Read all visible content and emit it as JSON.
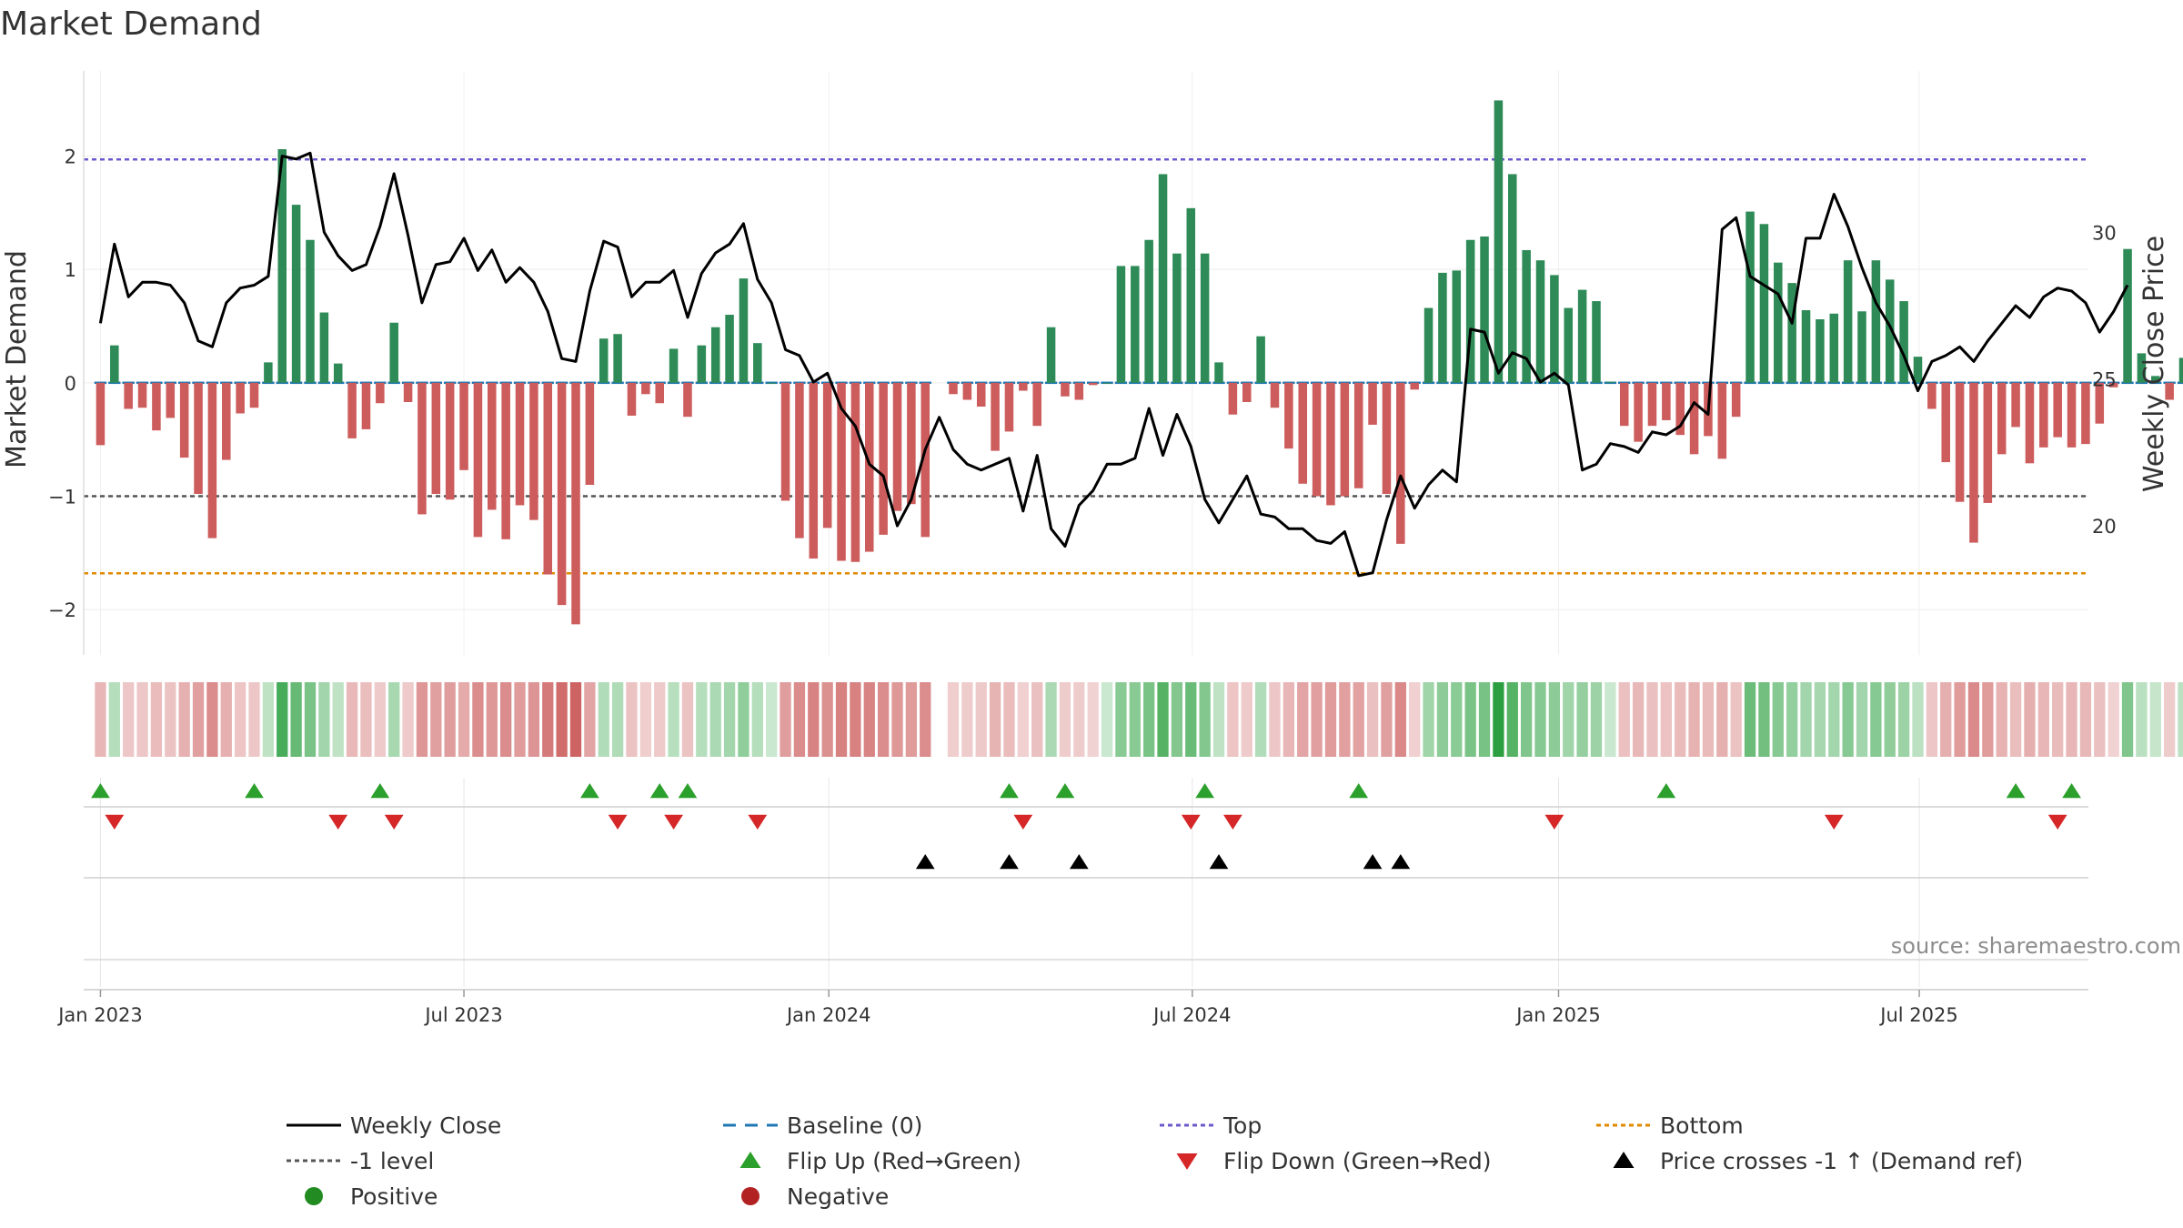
{
  "chart_data": {
    "type": "bar+line",
    "title": "Market Demand",
    "ylabel_left": "Market Demand",
    "ylabel_right": "Weekly Close Price",
    "ylim_left": [
      -2.4,
      2.75
    ],
    "ylim_right": [
      15.6,
      35.5
    ],
    "yticks_left": [
      2,
      1,
      0,
      -1,
      -2
    ],
    "ytick_labels_left": [
      "2",
      "1",
      "0",
      "−1",
      "−2"
    ],
    "yticks_right": [
      30,
      25,
      20
    ],
    "ytick_labels_right": [
      "30",
      "25",
      "20"
    ],
    "x_ticks": [
      {
        "week": 0,
        "label": "Jan 2023"
      },
      {
        "week": 26,
        "label": "Jul 2023"
      },
      {
        "week": 52.1,
        "label": "Jan 2024"
      },
      {
        "week": 78.1,
        "label": "Jul 2024"
      },
      {
        "week": 104.3,
        "label": "Jan 2025"
      },
      {
        "week": 130.1,
        "label": "Jul 2025"
      }
    ],
    "x_range_weeks": [
      -1.2,
      142.2
    ],
    "reference_lines": {
      "top": 1.97,
      "bottom": -1.68,
      "minus_one": -1.0,
      "baseline": 0
    },
    "demand": [
      -0.55,
      0.33,
      -0.23,
      -0.22,
      -0.42,
      -0.31,
      -0.66,
      -0.98,
      -1.37,
      -0.68,
      -0.27,
      -0.22,
      0.18,
      2.06,
      1.57,
      1.26,
      0.62,
      0.17,
      -0.49,
      -0.41,
      -0.18,
      0.53,
      -0.17,
      -1.16,
      -0.98,
      -1.03,
      -0.77,
      -1.36,
      -1.12,
      -1.38,
      -1.08,
      -1.21,
      -1.69,
      -1.96,
      -2.13,
      -0.9,
      0.39,
      0.43,
      -0.29,
      -0.1,
      -0.18,
      0.3,
      -0.3,
      0.33,
      0.49,
      0.6,
      0.92,
      0.35,
      0,
      -1.04,
      -1.37,
      -1.55,
      -1.28,
      -1.57,
      -1.58,
      -1.49,
      -1.34,
      -1.13,
      -1.07,
      -1.36,
      null,
      -0.1,
      -0.15,
      -0.21,
      -0.6,
      -0.43,
      -0.07,
      -0.38,
      0.49,
      -0.12,
      -0.15,
      -0.02,
      0,
      1.03,
      1.03,
      1.26,
      1.84,
      1.14,
      1.54,
      1.14,
      0.18,
      -0.28,
      -0.17,
      0.41,
      -0.22,
      -0.58,
      -0.89,
      -1.0,
      -1.08,
      -1.0,
      -0.93,
      -0.37,
      -0.98,
      -1.42,
      -0.06,
      0.66,
      0.97,
      0.99,
      1.26,
      1.29,
      2.49,
      1.84,
      1.17,
      1.08,
      0.95,
      0.66,
      0.82,
      0.72,
      0.01,
      -0.38,
      -0.52,
      -0.38,
      -0.33,
      -0.46,
      -0.63,
      -0.47,
      -0.67,
      -0.3,
      1.51,
      1.4,
      1.06,
      0.88,
      0.64,
      0.56,
      0.61,
      1.08,
      0.63,
      1.08,
      0.91,
      0.72,
      0.23,
      -0.23,
      -0.7,
      -1.05,
      -1.41,
      -1.06,
      -0.63,
      -0.39,
      -0.71,
      -0.57,
      -0.48,
      -0.57,
      -0.54,
      -0.36,
      -0.04,
      1.18,
      0.26,
      0.06,
      -0.15,
      0.22
    ],
    "weekly_close": [
      26.9,
      29.6,
      27.8,
      28.3,
      28.3,
      28.2,
      27.6,
      26.3,
      26.1,
      27.6,
      28.1,
      28.2,
      28.5,
      32.6,
      32.5,
      32.7,
      30.0,
      29.2,
      28.7,
      28.9,
      30.2,
      32.0,
      29.9,
      27.6,
      28.9,
      29.0,
      29.8,
      28.7,
      29.4,
      28.3,
      28.8,
      28.3,
      27.3,
      25.7,
      25.6,
      28.0,
      29.7,
      29.5,
      27.8,
      28.3,
      28.3,
      28.7,
      27.1,
      28.6,
      29.3,
      29.6,
      30.3,
      28.4,
      27.6,
      26.0,
      25.8,
      24.9,
      25.2,
      24.0,
      23.4,
      22.1,
      21.7,
      20.0,
      20.9,
      22.6,
      23.7,
      22.6,
      22.1,
      21.9,
      22.1,
      22.3,
      20.5,
      22.4,
      19.9,
      19.3,
      20.7,
      21.2,
      22.1,
      22.1,
      22.3,
      24.0,
      22.4,
      23.8,
      22.7,
      20.9,
      20.1,
      20.9,
      21.7,
      20.4,
      20.3,
      19.9,
      19.9,
      19.5,
      19.4,
      19.8,
      18.3,
      18.4,
      20.2,
      21.7,
      20.6,
      21.4,
      21.9,
      21.5,
      26.7,
      26.6,
      25.2,
      25.9,
      25.7,
      24.9,
      25.2,
      24.8,
      21.9,
      22.1,
      22.8,
      22.7,
      22.5,
      23.2,
      23.1,
      23.4,
      24.2,
      23.8,
      30.1,
      30.5,
      28.5,
      28.2,
      27.9,
      26.9,
      29.8,
      29.8,
      31.3,
      30.2,
      28.8,
      27.6,
      26.8,
      25.8,
      24.6,
      25.6,
      25.8,
      26.1,
      25.6,
      26.3,
      26.9,
      27.5,
      27.1,
      27.8,
      28.1,
      28.0,
      27.6,
      26.6,
      27.3,
      28.2
    ],
    "flip_up_weeks": [
      0,
      11,
      20,
      35,
      40,
      42,
      65,
      69,
      79,
      90,
      112,
      137,
      141
    ],
    "flip_down_weeks": [
      1,
      17,
      21,
      37,
      41,
      47,
      66,
      78,
      81,
      104,
      124,
      140
    ],
    "price_cross_weeks": [
      59,
      65,
      70,
      80,
      91,
      93
    ],
    "legend": [
      {
        "label": "Weekly Close",
        "symbol": "line",
        "color": "#000000"
      },
      {
        "label": "Baseline (0)",
        "symbol": "dash",
        "color": "#1f77b4"
      },
      {
        "label": "Top",
        "symbol": "dot",
        "color": "#6a5acd"
      },
      {
        "label": "Bottom",
        "symbol": "dot",
        "color": "#e08a00"
      },
      {
        "label": "-1 level",
        "symbol": "dot",
        "color": "#555555"
      },
      {
        "label": "Flip Up (Red→Green)",
        "symbol": "tri-up",
        "color": "#2ca02c"
      },
      {
        "label": "Flip Down (Green→Red)",
        "symbol": "tri-down",
        "color": "#d62728"
      },
      {
        "label": "Price crosses -1 ↑ (Demand ref)",
        "symbol": "tri-up",
        "color": "#000000"
      },
      {
        "label": "Positive",
        "symbol": "circle",
        "color": "#228b22"
      },
      {
        "label": "Negative",
        "symbol": "circle",
        "color": "#b22222"
      }
    ],
    "colors": {
      "positive_bar": "#2e8b57",
      "negative_bar": "#cd5c5c",
      "close_line": "#000000",
      "top_line": "#6a5acd",
      "bottom_line": "#e08a00",
      "minus_one_line": "#555555",
      "baseline": "#1f77b4",
      "heat_pos": "#2ca040",
      "heat_neg": "#c85050"
    },
    "source": "source: sharemaestro.com"
  }
}
